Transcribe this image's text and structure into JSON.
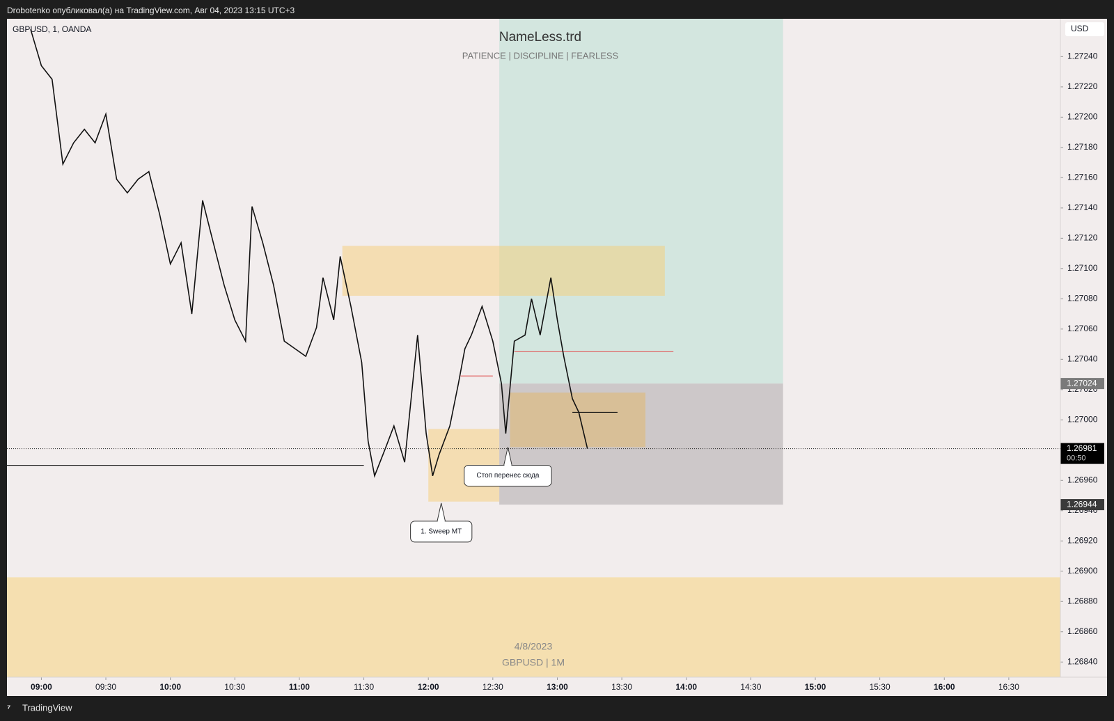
{
  "header": {
    "text": "Drobotenko опубликовал(а) на TradingView.com, Авг 04, 2023 13:15 UTC+3"
  },
  "footer": {
    "brand": "TradingView"
  },
  "chart_data": {
    "type": "line",
    "title": "NameLess.trd",
    "subtitle": "PATIENCE | DISCIPLINE | FEARLESS",
    "symbol": "GBPUSD, 1, OANDA",
    "currency": "USD",
    "watermark": [
      "4/8/2023",
      "GBPUSD | 1M"
    ],
    "color": "#111111",
    "x": [
      535,
      540,
      545,
      550,
      555,
      560,
      565,
      570,
      575,
      580,
      585,
      590,
      595,
      600,
      605,
      610,
      615,
      620,
      625,
      630,
      635,
      638,
      643,
      648,
      653,
      658,
      663,
      668,
      671,
      676,
      679,
      684,
      689,
      692,
      695,
      700,
      704,
      709,
      712,
      715,
      719,
      722,
      725,
      730,
      734,
      737,
      740,
      745,
      750,
      754,
      756,
      760,
      765,
      768,
      772,
      777,
      780,
      783,
      787,
      790,
      794
    ],
    "values": [
      1.27258,
      1.27234,
      1.27225,
      1.27169,
      1.27183,
      1.27192,
      1.27183,
      1.27202,
      1.27159,
      1.2715,
      1.27159,
      1.27164,
      1.27136,
      1.27103,
      1.27117,
      1.2707,
      1.27145,
      1.27117,
      1.27089,
      1.27066,
      1.27052,
      1.27141,
      1.27117,
      1.27089,
      1.27052,
      1.27047,
      1.27042,
      1.27061,
      1.27094,
      1.27066,
      1.27108,
      1.27075,
      1.27038,
      1.26986,
      1.26963,
      1.26981,
      1.26996,
      1.26972,
      1.27014,
      1.27056,
      1.26991,
      1.26963,
      1.26977,
      1.26996,
      1.27024,
      1.27047,
      1.27056,
      1.27075,
      1.27052,
      1.27024,
      1.26991,
      1.27052,
      1.27056,
      1.2708,
      1.27056,
      1.27094,
      1.27066,
      1.27042,
      1.27014,
      1.27005,
      1.26981
    ],
    "xlim": [
      524,
      1014
    ],
    "ylim": [
      1.2683,
      1.27265
    ],
    "xticks": [
      {
        "value": 540,
        "label": "09:00"
      },
      {
        "value": 570,
        "label": "09:30"
      },
      {
        "value": 600,
        "label": "10:00"
      },
      {
        "value": 630,
        "label": "10:30"
      },
      {
        "value": 660,
        "label": "11:00"
      },
      {
        "value": 690,
        "label": "11:30"
      },
      {
        "value": 720,
        "label": "12:00"
      },
      {
        "value": 750,
        "label": "12:30"
      },
      {
        "value": 780,
        "label": "13:00"
      },
      {
        "value": 810,
        "label": "13:30"
      },
      {
        "value": 840,
        "label": "14:00"
      },
      {
        "value": 870,
        "label": "14:30"
      },
      {
        "value": 900,
        "label": "15:00"
      },
      {
        "value": 930,
        "label": "15:30"
      },
      {
        "value": 960,
        "label": "16:00"
      },
      {
        "value": 990,
        "label": "16:30"
      }
    ],
    "yticks": [
      {
        "value": 1.2684,
        "label": "1.26840"
      },
      {
        "value": 1.2686,
        "label": "1.26860"
      },
      {
        "value": 1.2688,
        "label": "1.26880"
      },
      {
        "value": 1.269,
        "label": "1.26900"
      },
      {
        "value": 1.2692,
        "label": "1.26920"
      },
      {
        "value": 1.2694,
        "label": "1.26940"
      },
      {
        "value": 1.2696,
        "label": "1.26960"
      },
      {
        "value": 1.2698,
        "label": "1.26980"
      },
      {
        "value": 1.27,
        "label": "1.27000"
      },
      {
        "value": 1.2702,
        "label": "1.27020"
      },
      {
        "value": 1.2704,
        "label": "1.27040"
      },
      {
        "value": 1.2706,
        "label": "1.27060"
      },
      {
        "value": 1.2708,
        "label": "1.27080"
      },
      {
        "value": 1.271,
        "label": "1.27100"
      },
      {
        "value": 1.2712,
        "label": "1.27120"
      },
      {
        "value": 1.2714,
        "label": "1.27140"
      },
      {
        "value": 1.2716,
        "label": "1.27160"
      },
      {
        "value": 1.2718,
        "label": "1.27180"
      },
      {
        "value": 1.272,
        "label": "1.27200"
      },
      {
        "value": 1.2722,
        "label": "1.27220"
      },
      {
        "value": 1.2724,
        "label": "1.27240"
      }
    ],
    "zones": [
      {
        "x": [
          524,
          1014
        ],
        "y": [
          1.2683,
          1.26896
        ],
        "color": "#f5dfb0"
      },
      {
        "x": [
          753,
          885
        ],
        "y": [
          1.27024,
          1.27265
        ],
        "color": "#d3e6df"
      },
      {
        "x": [
          753,
          885
        ],
        "y": [
          1.26944,
          1.27024
        ],
        "color": "#cdc8c9"
      },
      {
        "x": [
          680,
          830
        ],
        "y": [
          1.27082,
          1.27115
        ],
        "color": "rgba(246,205,120,0.5)"
      },
      {
        "x": [
          720,
          753
        ],
        "y": [
          1.26946,
          1.26994
        ],
        "color": "rgba(246,205,120,0.5)"
      },
      {
        "x": [
          758,
          821
        ],
        "y": [
          1.26982,
          1.27018
        ],
        "color": "rgba(230,180,90,0.45)"
      }
    ],
    "levels": [
      {
        "x": [
          524,
          690
        ],
        "y": 1.2697,
        "color": "#111111"
      },
      {
        "x": [
          787,
          808
        ],
        "y": 1.27005,
        "color": "#111111"
      },
      {
        "x": [
          760,
          834
        ],
        "y": 1.27045,
        "color": "#e06060"
      },
      {
        "x": [
          735,
          750
        ],
        "y": 1.27029,
        "color": "#e06060"
      }
    ],
    "callouts": [
      {
        "text": "1. Sweep MT",
        "x": 726,
        "y": 1.26945
      },
      {
        "text": "Стоп перенес сюда",
        "x": 757,
        "y": 1.26982
      }
    ],
    "price_labels": [
      {
        "value": 1.27024,
        "color": "#7a7a7a"
      },
      {
        "value": 1.26981,
        "color": "#000000",
        "countdown": "00:50"
      },
      {
        "value": 1.26944,
        "color": "#3a3a3a"
      }
    ]
  }
}
